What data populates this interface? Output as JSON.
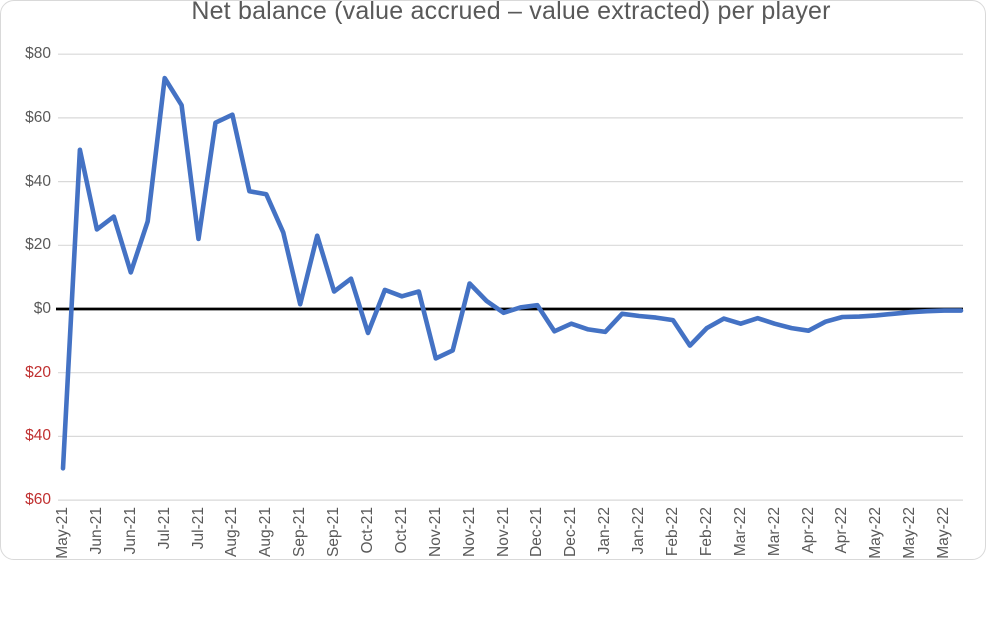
{
  "colors": {
    "line": "#4472C4",
    "zero_line": "#000000",
    "gridline": "#D9D9D9",
    "axis_label": "#595959",
    "negative_label": "#C03030",
    "title": "#595959",
    "frame_border": "#D9D9D9",
    "background": "#FFFFFF"
  },
  "chart_data": {
    "type": "line",
    "title": "Net balance (value accrued – value extracted) per player",
    "subtitle": "",
    "legend": "none",
    "grid": "horizontal",
    "ylim": [
      -60,
      80
    ],
    "y_ticks": [
      80,
      60,
      40,
      20,
      0,
      -20,
      -40,
      -60
    ],
    "y_tick_labels": [
      "$80",
      "$60",
      "$40",
      "$20",
      "$0",
      "$20",
      "$40",
      "$60"
    ],
    "y_tick_note": "negative ticks shown in red without minus sign",
    "zero_line": true,
    "x_label_every_n_points": 2,
    "x_tick_labels": [
      "May-21",
      "Jun-21",
      "Jun-21",
      "Jul-21",
      "Jul-21",
      "Aug-21",
      "Aug-21",
      "Sep-21",
      "Sep-21",
      "Oct-21",
      "Oct-21",
      "Nov-21",
      "Nov-21",
      "Nov-21",
      "Dec-21",
      "Dec-21",
      "Jan-22",
      "Jan-22",
      "Feb-22",
      "Feb-22",
      "Mar-22",
      "Mar-22",
      "Apr-22",
      "Apr-22",
      "May-22",
      "May-22",
      "May-22"
    ],
    "series": [
      {
        "name": "Net balance per player",
        "values": [
          -50,
          50,
          25,
          29,
          11.5,
          27.5,
          72.5,
          64,
          22,
          58.5,
          61,
          37,
          36,
          24,
          1.5,
          23,
          5.5,
          9.5,
          -7.5,
          6,
          4,
          5.5,
          -15.5,
          -13,
          8,
          2.5,
          -1.2,
          0.5,
          1.2,
          -7,
          -4.6,
          -6.4,
          -7.2,
          -1.5,
          -2.2,
          -2.7,
          -3.5,
          -11.5,
          -6,
          -3,
          -4.6,
          -2.9,
          -4.6,
          -6,
          -6.8,
          -4,
          -2.5,
          -2.4,
          -2,
          -1.5,
          -1,
          -0.7,
          -0.5,
          -0.5
        ]
      }
    ]
  }
}
